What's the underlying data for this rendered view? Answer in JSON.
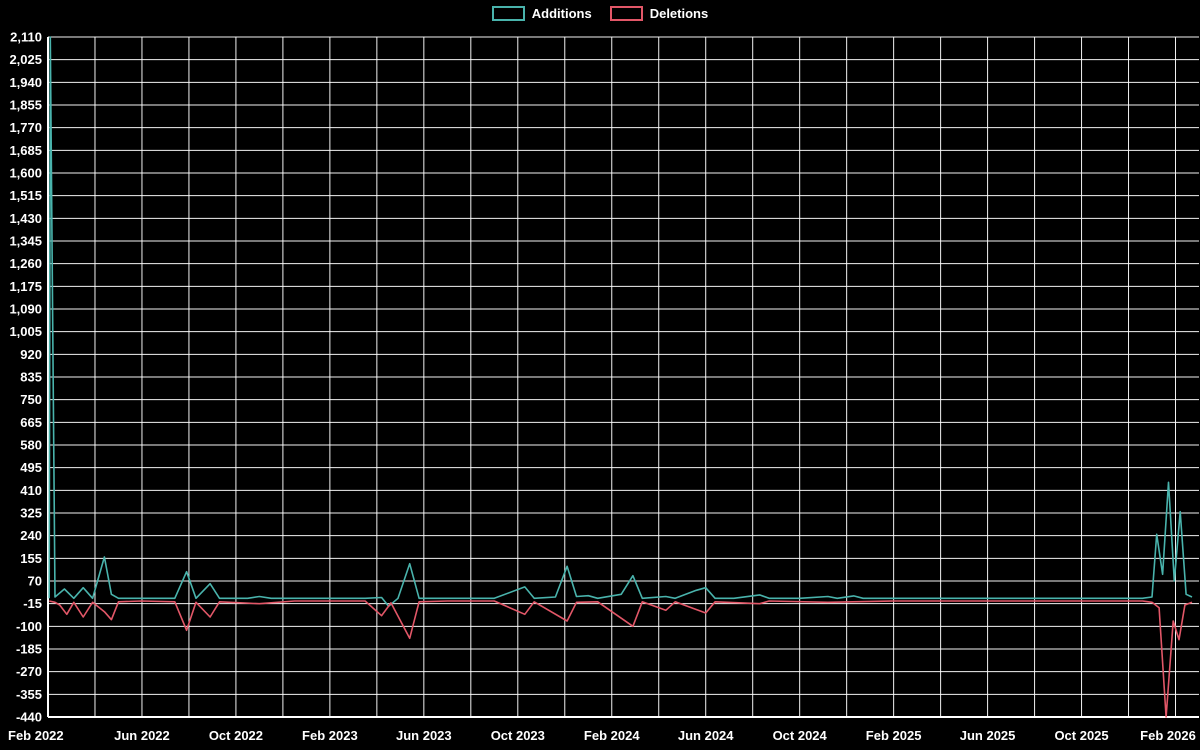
{
  "legend": {
    "items": [
      {
        "label": "Additions",
        "color": "#49b3ac"
      },
      {
        "label": "Deletions",
        "color": "#e25768"
      }
    ]
  },
  "colors": {
    "background": "#000000",
    "grid": "#ffffff",
    "axis": "#ffffff",
    "text": "#ffffff",
    "additions": "#49b3ac",
    "deletions": "#e25768"
  },
  "chart_data": {
    "type": "line",
    "title": "",
    "xlabel": "",
    "ylabel": "",
    "legend_position": "top-center",
    "grid": true,
    "x_axis": {
      "labels": [
        "Feb 2022",
        "Jun 2022",
        "Oct 2022",
        "Feb 2023",
        "Jun 2023",
        "Oct 2023",
        "Feb 2024",
        "Jun 2024",
        "Oct 2024",
        "Feb 2025",
        "Jun 2025",
        "Oct 2025",
        "Feb 2026"
      ],
      "label_month_indices": [
        0,
        4,
        8,
        12,
        16,
        20,
        24,
        28,
        32,
        36,
        40,
        44,
        48
      ],
      "total_months": 49,
      "vertical_grid_every_months": 2
    },
    "y_axis": {
      "min": -440,
      "max": 2110,
      "step": 85,
      "tick_labels_top_to_bottom": [
        "2,110",
        "2,025",
        "1,940",
        "1,855",
        "1,770",
        "1,685",
        "1,600",
        "1,515",
        "1,430",
        "1,345",
        "1,260",
        "1,175",
        "1,090",
        "1,005",
        "920",
        "835",
        "750",
        "665",
        "580",
        "495",
        "410",
        "325",
        "240",
        "155",
        "70",
        "-15",
        "-100",
        "-185",
        "-270",
        "-355",
        "-440"
      ]
    },
    "series": [
      {
        "name": "Additions",
        "color": "#49b3ac",
        "points": [
          [
            0.05,
            5
          ],
          [
            0.1,
            2110
          ],
          [
            0.3,
            10
          ],
          [
            0.7,
            40
          ],
          [
            1.1,
            5
          ],
          [
            1.5,
            45
          ],
          [
            1.9,
            5
          ],
          [
            2.4,
            160
          ],
          [
            2.7,
            20
          ],
          [
            3.0,
            5
          ],
          [
            3.5,
            5
          ],
          [
            4.5,
            5
          ],
          [
            5.4,
            5
          ],
          [
            5.9,
            105
          ],
          [
            6.3,
            5
          ],
          [
            6.9,
            60
          ],
          [
            7.3,
            5
          ],
          [
            8.5,
            5
          ],
          [
            9.0,
            12
          ],
          [
            9.5,
            5
          ],
          [
            10.5,
            5
          ],
          [
            12,
            5
          ],
          [
            13.5,
            5
          ],
          [
            14.2,
            8
          ],
          [
            14.5,
            -25
          ],
          [
            14.9,
            5
          ],
          [
            15.4,
            135
          ],
          [
            15.8,
            5
          ],
          [
            17,
            5
          ],
          [
            19,
            5
          ],
          [
            20.3,
            48
          ],
          [
            20.7,
            5
          ],
          [
            21.6,
            10
          ],
          [
            22.1,
            125
          ],
          [
            22.5,
            12
          ],
          [
            23.0,
            15
          ],
          [
            23.4,
            5
          ],
          [
            24.4,
            20
          ],
          [
            24.9,
            90
          ],
          [
            25.3,
            5
          ],
          [
            26.3,
            12
          ],
          [
            26.7,
            5
          ],
          [
            27.6,
            35
          ],
          [
            28.0,
            45
          ],
          [
            28.4,
            5
          ],
          [
            29.2,
            5
          ],
          [
            30.3,
            18
          ],
          [
            30.7,
            5
          ],
          [
            32,
            5
          ],
          [
            33.2,
            12
          ],
          [
            33.6,
            5
          ],
          [
            34.3,
            14
          ],
          [
            34.7,
            5
          ],
          [
            36,
            5
          ],
          [
            38,
            5
          ],
          [
            40,
            5
          ],
          [
            42,
            5
          ],
          [
            44,
            5
          ],
          [
            45.5,
            5
          ],
          [
            46.6,
            5
          ],
          [
            47.0,
            10
          ],
          [
            47.2,
            245
          ],
          [
            47.45,
            95
          ],
          [
            47.7,
            440
          ],
          [
            47.95,
            70
          ],
          [
            48.2,
            330
          ],
          [
            48.45,
            20
          ],
          [
            48.7,
            10
          ]
        ]
      },
      {
        "name": "Deletions",
        "color": "#e25768",
        "points": [
          [
            0.05,
            -5
          ],
          [
            0.3,
            -10
          ],
          [
            0.5,
            -20
          ],
          [
            0.8,
            -55
          ],
          [
            1.1,
            -10
          ],
          [
            1.5,
            -65
          ],
          [
            1.9,
            -10
          ],
          [
            2.4,
            -45
          ],
          [
            2.7,
            -75
          ],
          [
            3.0,
            -8
          ],
          [
            4,
            -5
          ],
          [
            5.4,
            -8
          ],
          [
            5.9,
            -115
          ],
          [
            6.3,
            -10
          ],
          [
            6.9,
            -65
          ],
          [
            7.3,
            -8
          ],
          [
            9.0,
            -15
          ],
          [
            10.5,
            -5
          ],
          [
            12,
            -5
          ],
          [
            13.5,
            -5
          ],
          [
            14.2,
            -60
          ],
          [
            14.6,
            -12
          ],
          [
            15.4,
            -145
          ],
          [
            15.8,
            -8
          ],
          [
            17,
            -5
          ],
          [
            19,
            -5
          ],
          [
            20.3,
            -55
          ],
          [
            20.7,
            -8
          ],
          [
            22.1,
            -80
          ],
          [
            22.5,
            -10
          ],
          [
            23.4,
            -8
          ],
          [
            24.9,
            -100
          ],
          [
            25.3,
            -8
          ],
          [
            26.3,
            -40
          ],
          [
            26.7,
            -8
          ],
          [
            28.0,
            -50
          ],
          [
            28.4,
            -8
          ],
          [
            30.3,
            -15
          ],
          [
            30.7,
            -5
          ],
          [
            33.2,
            -10
          ],
          [
            36,
            -5
          ],
          [
            40,
            -5
          ],
          [
            44,
            -5
          ],
          [
            46.6,
            -5
          ],
          [
            47.0,
            -10
          ],
          [
            47.3,
            -30
          ],
          [
            47.6,
            -440
          ],
          [
            47.9,
            -80
          ],
          [
            48.15,
            -150
          ],
          [
            48.4,
            -20
          ],
          [
            48.7,
            -10
          ]
        ]
      }
    ]
  }
}
